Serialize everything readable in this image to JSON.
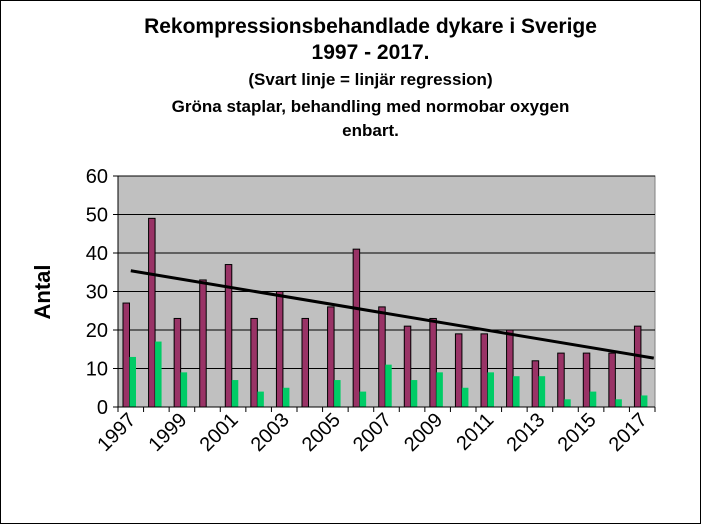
{
  "chart_data": {
    "type": "bar",
    "title": "Rekompressionsbehandlade dykare i  Sverige",
    "title_line2": "1997 - 2017.",
    "subtitle": "(Svart linje = linjär regression)",
    "subtitle2": "Gröna staplar, behandling med normobar oxygen",
    "subtitle3": "enbart.",
    "ylabel": "Antal",
    "xlabel": "",
    "ylim": [
      0,
      60
    ],
    "yticks": [
      0,
      10,
      20,
      30,
      40,
      50,
      60
    ],
    "xtick_labels": [
      "1997",
      "1999",
      "2001",
      "2003",
      "2005",
      "2007",
      "2009",
      "2011",
      "2013",
      "2015",
      "2017"
    ],
    "categories": [
      "1997",
      "1998",
      "1999",
      "2000",
      "2001",
      "2002",
      "2003",
      "2004",
      "2005",
      "2006",
      "2007",
      "2008",
      "2009",
      "2010",
      "2011",
      "2012",
      "2013",
      "2014",
      "2015",
      "2016",
      "2017"
    ],
    "series": [
      {
        "color": "#993366",
        "values": [
          27,
          49,
          23,
          33,
          37,
          23,
          30,
          23,
          26,
          41,
          26,
          21,
          23,
          19,
          19,
          20,
          12,
          14,
          14,
          14,
          21
        ]
      },
      {
        "color": "#00cc66",
        "values": [
          13,
          17,
          9,
          0,
          7,
          4,
          5,
          0,
          7,
          4,
          11,
          7,
          9,
          5,
          9,
          8,
          8,
          2,
          4,
          2,
          3
        ]
      }
    ],
    "regression_line": {
      "color": "#000000",
      "start": [
        1997,
        35.4
      ],
      "end": [
        2018,
        12.7
      ]
    },
    "plot_background": "#c0c0c0",
    "grid": true,
    "legend": "none"
  }
}
